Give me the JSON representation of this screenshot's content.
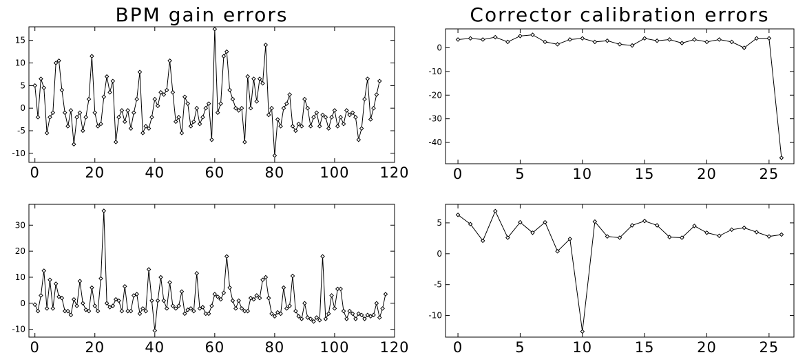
{
  "figure": {
    "left_title": "BPM gain errors",
    "right_title": "Corrector calibration errors"
  },
  "colors": {
    "line": "#000000",
    "frame": "#000000",
    "background": "#ffffff"
  },
  "chart_data": [
    {
      "type": "line",
      "title": "BPM gain errors",
      "xlabel": "",
      "ylabel": "",
      "xlim": [
        -2,
        120
      ],
      "ylim": [
        -12,
        18
      ],
      "xticks": [
        0,
        20,
        40,
        60,
        80,
        100,
        120
      ],
      "yticks": [
        -10,
        -5,
        0,
        5,
        10,
        15
      ],
      "grid": false,
      "marker": "diamond",
      "series": [
        {
          "x_start": 0,
          "values": [
            5,
            -2,
            6.5,
            4.5,
            -5.5,
            -2,
            -1,
            10,
            10.5,
            4,
            -1,
            -4,
            -0.5,
            -8,
            -2,
            -1,
            -5,
            -2,
            2,
            11.5,
            -1,
            -4,
            -3.5,
            2.5,
            7,
            3.5,
            6,
            -7.5,
            -2,
            -0.5,
            -3,
            -0.5,
            -4.5,
            -1,
            2,
            8,
            -5.5,
            -4,
            -4.5,
            -2,
            2,
            0.5,
            3.5,
            3,
            4,
            10.5,
            3.5,
            -3,
            -2,
            -5.5,
            2.5,
            1,
            -4,
            -3,
            0,
            -3.5,
            -2,
            0,
            1,
            -7,
            17.5,
            -1,
            1,
            11.5,
            12.5,
            4,
            2,
            0,
            -0.5,
            0,
            -7.5,
            7,
            0,
            6.5,
            1.5,
            6.5,
            5.5,
            14,
            -1.5,
            0,
            -10.5,
            -2.5,
            -4,
            0,
            1,
            3,
            -4,
            -5,
            -3.5,
            -4,
            2,
            0,
            -4,
            -2,
            -1,
            -4,
            -1.5,
            -2,
            -4.5,
            -2,
            -0.5,
            -4,
            -2,
            -3.5,
            -0.5,
            -1.5,
            -1,
            -2,
            -7,
            -4.5,
            2,
            6.5,
            -2.5,
            0,
            3,
            6
          ]
        }
      ]
    },
    {
      "type": "line",
      "title": "Corrector calibration errors",
      "xlabel": "",
      "ylabel": "",
      "xlim": [
        -1,
        27
      ],
      "ylim": [
        -49,
        8
      ],
      "xticks": [
        0,
        5,
        10,
        15,
        20,
        25
      ],
      "yticks": [
        0,
        -10,
        -20,
        -30,
        -40
      ],
      "grid": false,
      "marker": "diamond",
      "series": [
        {
          "x_start": 0,
          "values": [
            3.5,
            4,
            3.5,
            4.5,
            2.5,
            5,
            5.5,
            2.5,
            1.5,
            3.5,
            4,
            2.5,
            3,
            1.5,
            1,
            4,
            3,
            3.5,
            2,
            3.5,
            2.5,
            3.5,
            2.5,
            0,
            4,
            4,
            -46.5
          ]
        }
      ]
    },
    {
      "type": "line",
      "title": "",
      "xlabel": "",
      "ylabel": "",
      "xlim": [
        -2,
        120
      ],
      "ylim": [
        -13,
        38
      ],
      "xticks": [
        0,
        20,
        40,
        60,
        80,
        100,
        120
      ],
      "yticks": [
        -10,
        0,
        10,
        20,
        30
      ],
      "grid": false,
      "marker": "diamond",
      "series": [
        {
          "x_start": 0,
          "values": [
            -0.5,
            -3,
            3,
            12.5,
            -2,
            9,
            -2,
            7.5,
            2.5,
            2,
            -3,
            -3,
            -4.5,
            1.5,
            -1,
            8.5,
            0,
            -2.5,
            -3,
            6,
            -1,
            -3,
            9.5,
            35.5,
            0,
            -1.5,
            -1,
            1.5,
            1,
            -3,
            6.5,
            -3,
            -3,
            3,
            3.5,
            -4,
            -2,
            -3,
            13,
            1,
            -10.5,
            1,
            10,
            1,
            -2,
            8,
            -1,
            -2,
            -1,
            4.5,
            -4,
            -2.5,
            -2,
            -3,
            11.5,
            -2,
            -1.5,
            -4,
            -4,
            -1,
            3.5,
            2.5,
            1.5,
            4,
            18,
            6,
            1,
            -2,
            1,
            -2,
            -3,
            -3,
            2,
            1.5,
            3,
            2,
            9,
            10,
            2,
            -4,
            -5,
            -3.5,
            -4,
            6,
            -2,
            -1,
            10.5,
            -3,
            -5,
            -6,
            0,
            -5.5,
            -6,
            -7,
            -5.5,
            -6.5,
            18,
            -6,
            -4,
            3,
            -2,
            5.5,
            5.5,
            -3,
            -6,
            -3,
            -4,
            -6,
            -4,
            -4.5,
            -6,
            -4.5,
            -5,
            -4.5,
            0,
            -5.5,
            -2,
            3.5
          ]
        }
      ]
    },
    {
      "type": "line",
      "title": "",
      "xlabel": "",
      "ylabel": "",
      "xlim": [
        -1,
        27
      ],
      "ylim": [
        -13.5,
        8
      ],
      "xticks": [
        0,
        5,
        10,
        15,
        20,
        25
      ],
      "yticks": [
        5,
        0,
        -5,
        -10
      ],
      "grid": false,
      "marker": "diamond",
      "series": [
        {
          "x_start": 0,
          "values": [
            6.3,
            4.8,
            2.1,
            6.9,
            2.6,
            5.1,
            3.4,
            5.1,
            0.4,
            2.4,
            -12.6,
            5.2,
            2.8,
            2.6,
            4.6,
            5.3,
            4.6,
            2.7,
            2.6,
            4.5,
            3.4,
            2.9,
            3.9,
            4.2,
            3.5,
            2.8,
            3.1
          ]
        }
      ]
    }
  ]
}
